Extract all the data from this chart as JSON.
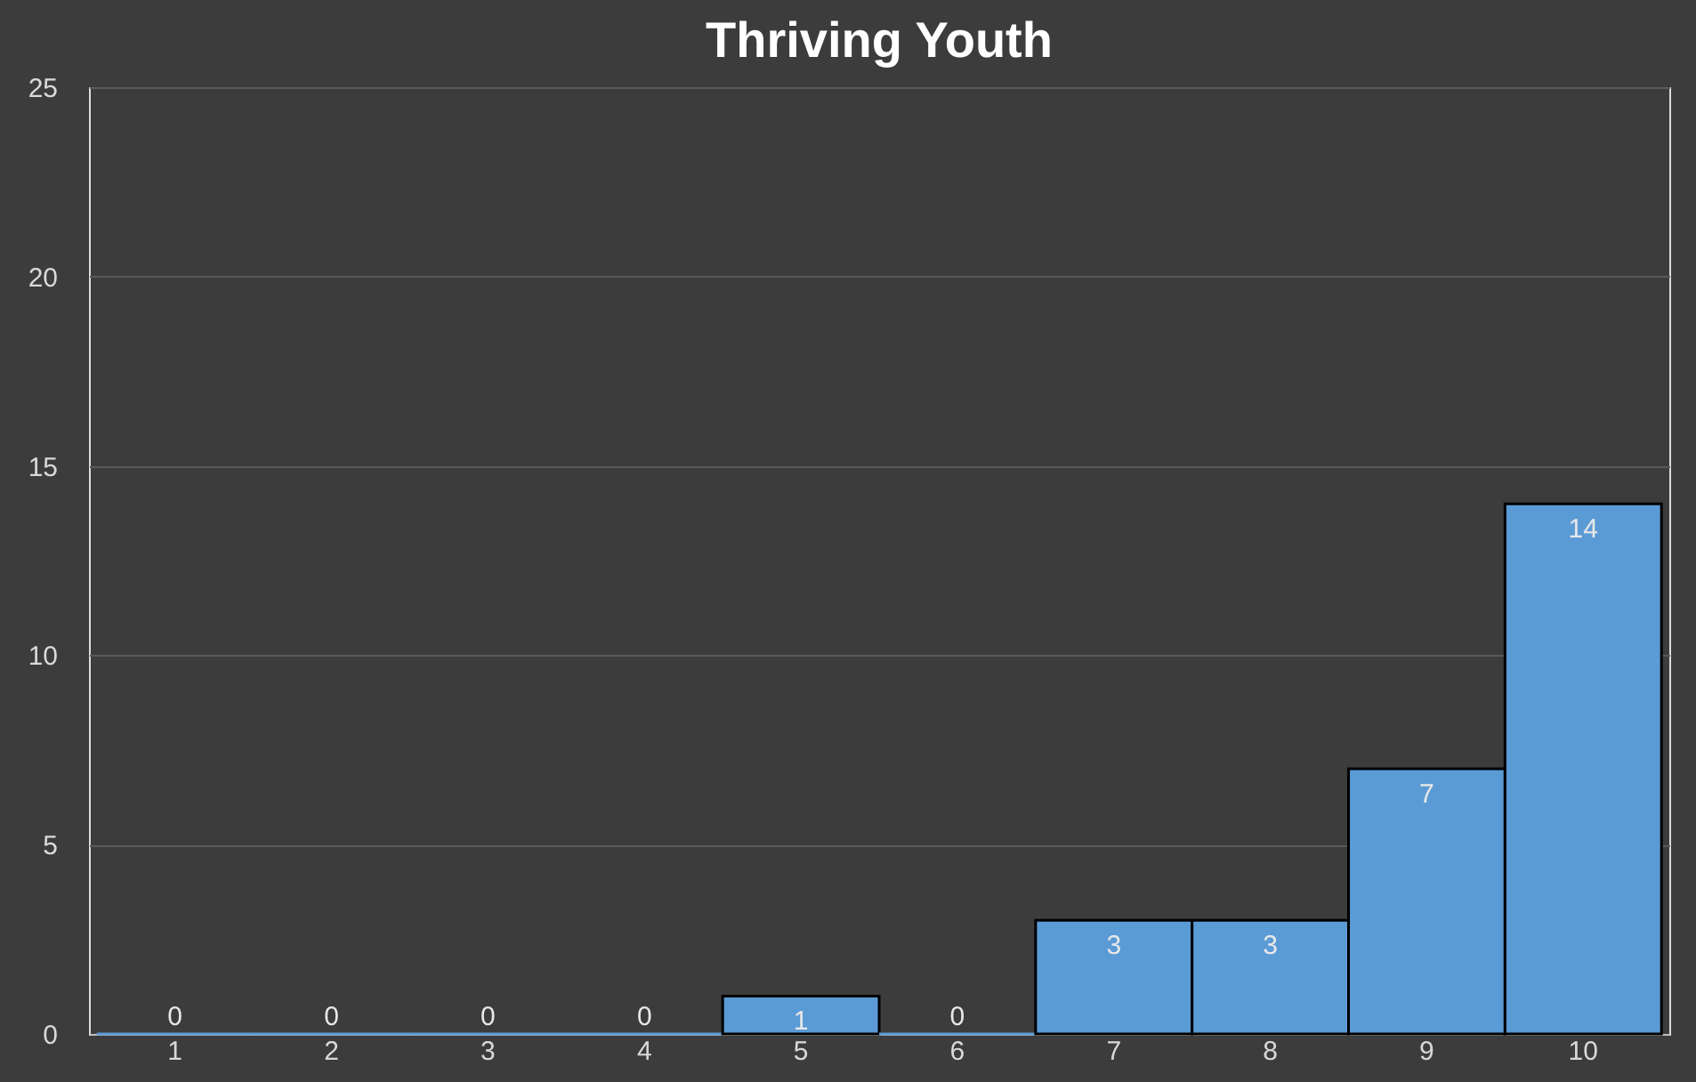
{
  "chart_data": {
    "type": "bar",
    "title": "Thriving Youth",
    "categories": [
      "1",
      "2",
      "3",
      "4",
      "5",
      "6",
      "7",
      "8",
      "9",
      "10"
    ],
    "values": [
      0,
      0,
      0,
      0,
      1,
      0,
      3,
      3,
      7,
      14
    ],
    "color": "#5b9bd5",
    "ylim": [
      0,
      25
    ],
    "yticks": [
      0,
      5,
      10,
      15,
      20,
      25
    ],
    "grid": "y",
    "data_labels": true
  }
}
